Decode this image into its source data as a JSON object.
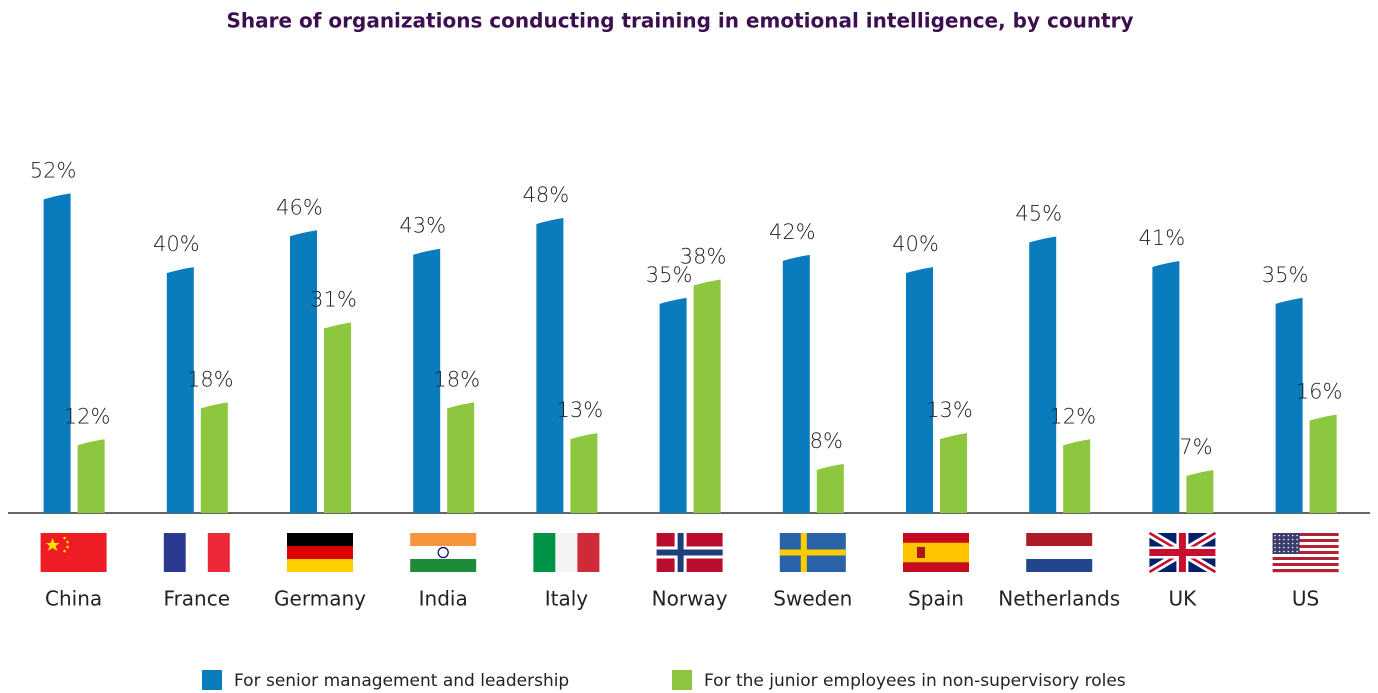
{
  "chart_data": {
    "type": "bar",
    "title": "Share of organizations conducting training in emotional intelligence, by country",
    "categories": [
      "China",
      "France",
      "Germany",
      "India",
      "Italy",
      "Norway",
      "Sweden",
      "Spain",
      "Netherlands",
      "UK",
      "US"
    ],
    "series": [
      {
        "name": "For senior management and leadership",
        "color": "#0a7bbd",
        "values": [
          52,
          40,
          46,
          43,
          48,
          35,
          42,
          40,
          45,
          41,
          35
        ],
        "value_labels": [
          "52%",
          "40%",
          "46%",
          "43%",
          "48%",
          "35%",
          "42%",
          "40%",
          "45%",
          "41%",
          "35%"
        ]
      },
      {
        "name": "For the junior employees in non-supervisory roles",
        "color": "#8dc63f",
        "values": [
          12,
          18,
          31,
          18,
          13,
          38,
          8,
          13,
          12,
          7,
          16
        ],
        "value_labels": [
          "12%",
          "18%",
          "31%",
          "18%",
          "13%",
          "38%",
          "8%",
          "13%",
          "12%",
          "7%",
          "16%"
        ]
      }
    ],
    "ylim": [
      0,
      55
    ],
    "legend": "bottom"
  }
}
